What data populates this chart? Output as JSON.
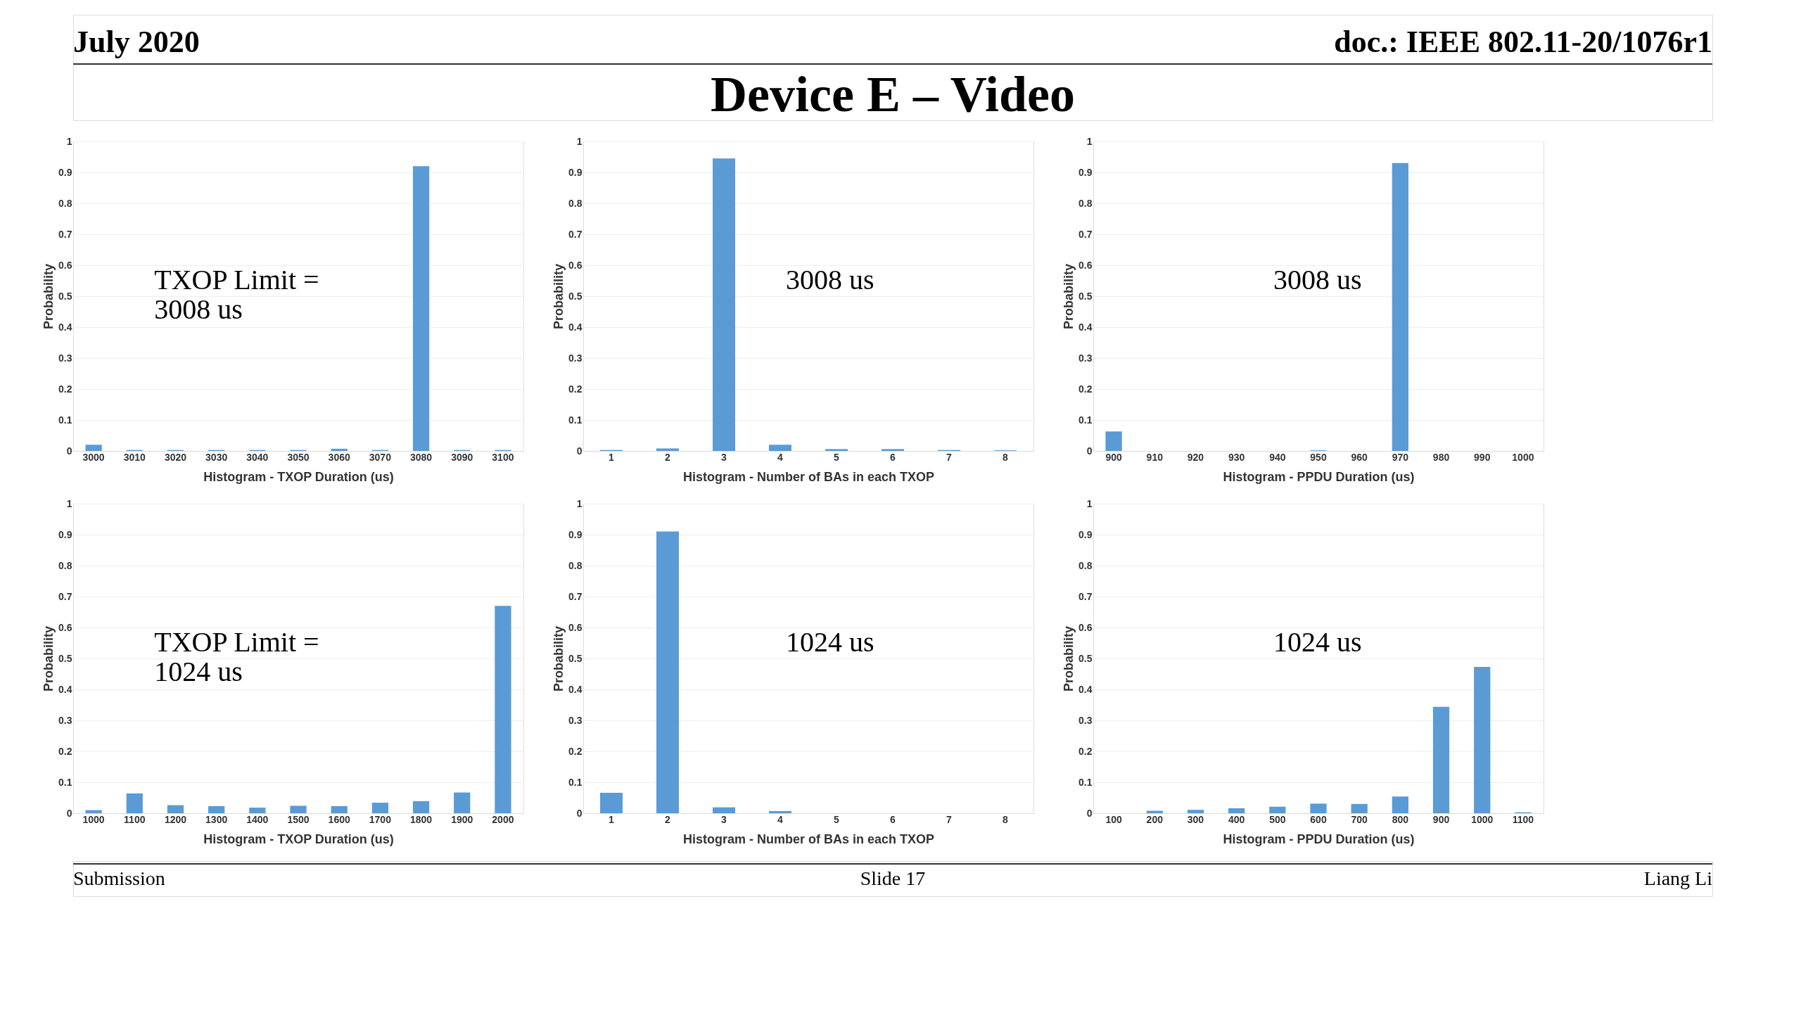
{
  "chart_data": [
    {
      "type": "other",
      "title": "Device E – Video",
      "annotations": [
        "July 2020",
        "doc.: IEEE 802.11-20/1076r1"
      ]
    },
    {
      "type": "bar",
      "categories": [
        "3000",
        "3010",
        "3020",
        "3030",
        "3040",
        "3050",
        "3060",
        "3070",
        "3080",
        "3090",
        "3100"
      ],
      "values": [
        0.02,
        0.003,
        0.003,
        0.003,
        0.003,
        0.003,
        0.007,
        0.003,
        0.92,
        0.003,
        0.003
      ],
      "color": "#5b9bd5",
      "xlabel": "Histogram - TXOP Duration (us)",
      "ylabel": "Probability",
      "ylim": [
        0,
        1
      ],
      "yticks": [
        0,
        0.1,
        0.2,
        0.3,
        0.4,
        0.5,
        0.6,
        0.7,
        0.8,
        0.9,
        1
      ],
      "grid": "y",
      "annotations": [
        "TXOP Limit =\n3008 us"
      ]
    },
    {
      "type": "bar",
      "categories": [
        "1",
        "2",
        "3",
        "4",
        "5",
        "6",
        "7",
        "8"
      ],
      "values": [
        0.003,
        0.008,
        0.945,
        0.02,
        0.006,
        0.006,
        0.003,
        0.002
      ],
      "color": "#5b9bd5",
      "xlabel": "Histogram - Number of BAs in each TXOP",
      "ylabel": "Probability",
      "ylim": [
        0,
        1
      ],
      "yticks": [
        0,
        0.1,
        0.2,
        0.3,
        0.4,
        0.5,
        0.6,
        0.7,
        0.8,
        0.9,
        1
      ],
      "grid": "y",
      "annotations": [
        "3008 us"
      ]
    },
    {
      "type": "bar",
      "categories": [
        "900",
        "910",
        "920",
        "930",
        "940",
        "950",
        "960",
        "970",
        "980",
        "990",
        "1000"
      ],
      "values": [
        0.063,
        0,
        0,
        0,
        0,
        0.002,
        0,
        0.93,
        0,
        0,
        0
      ],
      "color": "#5b9bd5",
      "xlabel": "Histogram - PPDU Duration (us)",
      "ylabel": "Probability",
      "ylim": [
        0,
        1
      ],
      "yticks": [
        0,
        0.1,
        0.2,
        0.3,
        0.4,
        0.5,
        0.6,
        0.7,
        0.8,
        0.9,
        1
      ],
      "grid": "y",
      "annotations": [
        "3008 us"
      ]
    },
    {
      "type": "bar",
      "categories": [
        "1000",
        "1100",
        "1200",
        "1300",
        "1400",
        "1500",
        "1600",
        "1700",
        "1800",
        "1900",
        "2000"
      ],
      "values": [
        0.01,
        0.064,
        0.026,
        0.023,
        0.018,
        0.024,
        0.023,
        0.034,
        0.039,
        0.067,
        0.67
      ],
      "color": "#5b9bd5",
      "xlabel": "Histogram - TXOP Duration (us)",
      "ylabel": "Probability",
      "ylim": [
        0,
        1
      ],
      "yticks": [
        0,
        0.1,
        0.2,
        0.3,
        0.4,
        0.5,
        0.6,
        0.7,
        0.8,
        0.9,
        1
      ],
      "grid": "y",
      "annotations": [
        "TXOP Limit =\n1024 us"
      ]
    },
    {
      "type": "bar",
      "categories": [
        "1",
        "2",
        "3",
        "4",
        "5",
        "6",
        "7",
        "8"
      ],
      "values": [
        0.066,
        0.91,
        0.019,
        0.007,
        0,
        0,
        0,
        0
      ],
      "color": "#5b9bd5",
      "xlabel": "Histogram - Number of BAs in each TXOP",
      "ylabel": "Probability",
      "ylim": [
        0,
        1
      ],
      "yticks": [
        0,
        0.1,
        0.2,
        0.3,
        0.4,
        0.5,
        0.6,
        0.7,
        0.8,
        0.9,
        1
      ],
      "grid": "y",
      "annotations": [
        "1024 us"
      ]
    },
    {
      "type": "bar",
      "categories": [
        "100",
        "200",
        "300",
        "400",
        "500",
        "600",
        "700",
        "800",
        "900",
        "1000",
        "1100"
      ],
      "values": [
        0,
        0.008,
        0.011,
        0.016,
        0.021,
        0.031,
        0.03,
        0.054,
        0.344,
        0.473,
        0.003
      ],
      "color": "#5b9bd5",
      "xlabel": "Histogram - PPDU Duration (us)",
      "ylabel": "Probability",
      "ylim": [
        0,
        1
      ],
      "yticks": [
        0,
        0.1,
        0.2,
        0.3,
        0.4,
        0.5,
        0.6,
        0.7,
        0.8,
        0.9,
        1
      ],
      "grid": "y",
      "annotations": [
        "1024 us"
      ]
    },
    {
      "type": "other",
      "annotations": [
        "Submission",
        "Slide 17",
        "Liang Li"
      ]
    }
  ]
}
